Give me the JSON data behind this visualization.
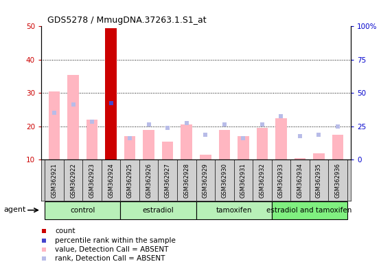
{
  "title": "GDS5278 / MmugDNA.37263.1.S1_at",
  "samples": [
    "GSM362921",
    "GSM362922",
    "GSM362923",
    "GSM362924",
    "GSM362925",
    "GSM362926",
    "GSM362927",
    "GSM362928",
    "GSM362929",
    "GSM362930",
    "GSM362931",
    "GSM362932",
    "GSM362933",
    "GSM362934",
    "GSM362935",
    "GSM362936"
  ],
  "values": [
    30.5,
    35.5,
    22.0,
    49.5,
    17.0,
    19.0,
    15.5,
    20.5,
    11.5,
    19.0,
    17.0,
    19.5,
    22.5,
    10.5,
    12.0,
    17.5
  ],
  "ranks": [
    24.0,
    26.5,
    21.5,
    27.0,
    16.5,
    20.5,
    19.5,
    21.0,
    17.5,
    20.5,
    16.5,
    20.5,
    23.0,
    17.0,
    17.5,
    20.0
  ],
  "is_count": [
    false,
    false,
    false,
    true,
    false,
    false,
    false,
    false,
    false,
    false,
    false,
    false,
    false,
    false,
    false,
    false
  ],
  "is_percentile": [
    false,
    false,
    false,
    true,
    false,
    false,
    false,
    false,
    false,
    false,
    false,
    false,
    false,
    false,
    false,
    false
  ],
  "ylim_left": [
    10,
    50
  ],
  "ylim_right": [
    0,
    100
  ],
  "yticks_left": [
    10,
    20,
    30,
    40,
    50
  ],
  "yticks_right": [
    0,
    25,
    50,
    75,
    100
  ],
  "groups": [
    {
      "label": "control",
      "start": 0,
      "end": 3,
      "color": "#b8f0b8"
    },
    {
      "label": "estradiol",
      "start": 4,
      "end": 7,
      "color": "#b8f0b8"
    },
    {
      "label": "tamoxifen",
      "start": 8,
      "end": 11,
      "color": "#b8f0b8"
    },
    {
      "label": "estradiol and tamoxifen",
      "start": 12,
      "end": 15,
      "color": "#80f080"
    }
  ],
  "bar_color_absent": "#ffb6c1",
  "bar_color_count": "#cc0000",
  "rank_color_absent": "#b8bce8",
  "rank_color_percentile": "#4444cc",
  "background_color": "#ffffff",
  "ylabel_left_color": "#cc0000",
  "ylabel_right_color": "#0000cc",
  "sample_box_color": "#d0d0d0",
  "legend_items": [
    {
      "color": "#cc0000",
      "label": "count"
    },
    {
      "color": "#4444cc",
      "label": "percentile rank within the sample"
    },
    {
      "color": "#ffb6c1",
      "label": "value, Detection Call = ABSENT"
    },
    {
      "color": "#b8bce8",
      "label": "rank, Detection Call = ABSENT"
    }
  ]
}
